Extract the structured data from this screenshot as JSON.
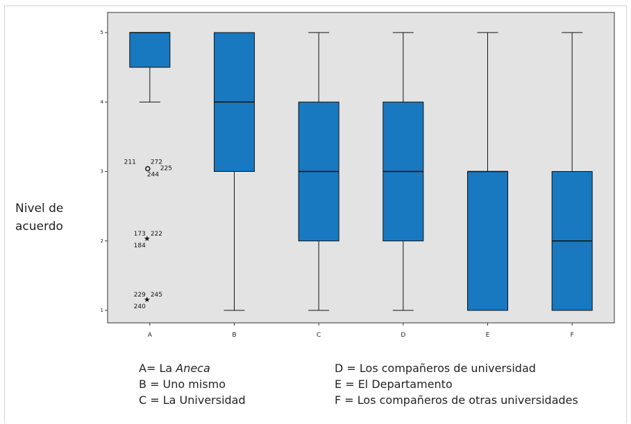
{
  "chart_data": {
    "type": "boxplot",
    "ylabel": "Nivel de acuerdo",
    "ylim": [
      0.95,
      5.15
    ],
    "yticks": [
      1,
      2,
      3,
      4,
      5
    ],
    "categories": [
      "A",
      "B",
      "C",
      "D",
      "E",
      "F"
    ],
    "boxes": [
      {
        "category": "A",
        "whisker_low": 4,
        "q1": 4.5,
        "median": 5,
        "q3": 5,
        "whisker_high": 5
      },
      {
        "category": "B",
        "whisker_low": 1,
        "q1": 3,
        "median": 4,
        "q3": 5,
        "whisker_high": 5
      },
      {
        "category": "C",
        "whisker_low": 1,
        "q1": 2,
        "median": 3,
        "q3": 4,
        "whisker_high": 5
      },
      {
        "category": "D",
        "whisker_low": 1,
        "q1": 2,
        "median": 3,
        "q3": 4,
        "whisker_high": 5
      },
      {
        "category": "E",
        "whisker_low": 1,
        "q1": 1,
        "median": 3,
        "q3": 3,
        "whisker_high": 5
      },
      {
        "category": "F",
        "whisker_low": 1,
        "q1": 1,
        "median": 2,
        "q3": 3,
        "whisker_high": 5
      }
    ],
    "outliers": [
      {
        "category": "A",
        "y": 3,
        "marker": "circle",
        "labels": [
          "211",
          "272",
          "244",
          "225"
        ]
      },
      {
        "category": "A",
        "y": 2,
        "marker": "star",
        "labels": [
          "173",
          "222",
          "184"
        ]
      },
      {
        "category": "A",
        "y": 1,
        "marker": "star",
        "labels": [
          "229",
          "245",
          "240"
        ]
      }
    ],
    "box_color": "#1878c0",
    "plot_background": "#e3e3e3"
  },
  "legend": {
    "left": [
      {
        "prefix": "A= La ",
        "italic": "Aneca"
      },
      {
        "prefix": "B = Uno mismo",
        "italic": ""
      },
      {
        "prefix": "C = La Universidad",
        "italic": ""
      }
    ],
    "right": [
      "D = Los compañeros de universidad",
      "E = El Departamento",
      "F = Los compañeros de otras universidades"
    ]
  }
}
